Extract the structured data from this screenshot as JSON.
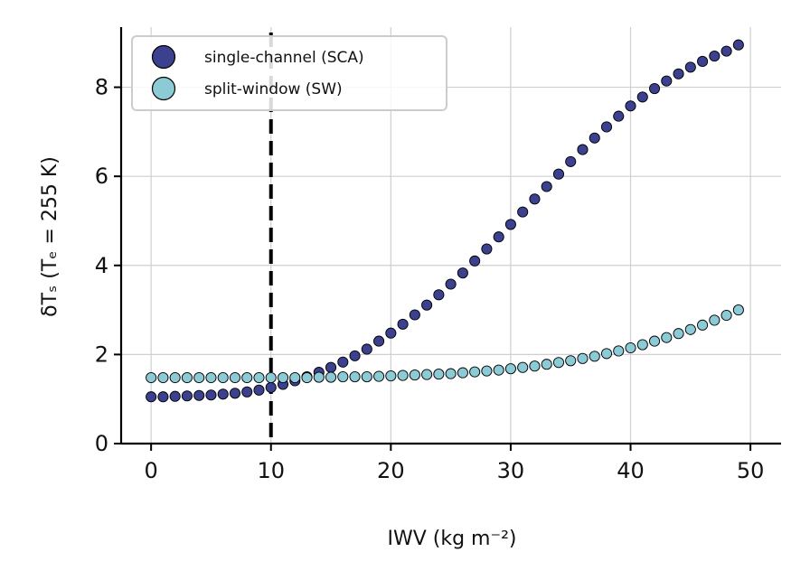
{
  "chart_data": {
    "type": "scatter",
    "title": "",
    "xlabel": "IWV (kg m⁻²)",
    "ylabel": "δTₛ (Tₑ = 255 K)",
    "xlim": [
      -2.5,
      51.5
    ],
    "ylim": [
      0,
      9.35
    ],
    "xticks": [
      0,
      10,
      20,
      30,
      40,
      50
    ],
    "yticks": [
      0,
      2,
      4,
      6,
      8
    ],
    "grid": true,
    "legend_position": "top-left",
    "vline": {
      "x": 10,
      "style": "dashed",
      "color": "#000000"
    },
    "x": [
      0,
      1,
      2,
      3,
      4,
      5,
      6,
      7,
      8,
      9,
      10,
      11,
      12,
      13,
      14,
      15,
      16,
      17,
      18,
      19,
      20,
      21,
      22,
      23,
      24,
      25,
      26,
      27,
      28,
      29,
      30,
      31,
      32,
      33,
      34,
      35,
      36,
      37,
      38,
      39,
      40,
      41,
      42,
      43,
      44,
      45,
      46,
      47,
      48,
      49
    ],
    "series": [
      {
        "name": "single-channel (SCA)",
        "color": "#3b418e",
        "values": [
          1.05,
          1.05,
          1.06,
          1.07,
          1.08,
          1.09,
          1.11,
          1.13,
          1.16,
          1.2,
          1.26,
          1.33,
          1.41,
          1.5,
          1.6,
          1.71,
          1.83,
          1.97,
          2.12,
          2.3,
          2.48,
          2.68,
          2.89,
          3.11,
          3.34,
          3.58,
          3.83,
          4.1,
          4.37,
          4.64,
          4.92,
          5.2,
          5.49,
          5.77,
          6.05,
          6.33,
          6.6,
          6.86,
          7.11,
          7.35,
          7.58,
          7.78,
          7.97,
          8.14,
          8.3,
          8.45,
          8.58,
          8.7,
          8.81,
          8.95
        ]
      },
      {
        "name": "split-window (SW)",
        "color": "#8ccad6",
        "values": [
          1.48,
          1.48,
          1.48,
          1.48,
          1.48,
          1.48,
          1.48,
          1.48,
          1.48,
          1.48,
          1.48,
          1.48,
          1.48,
          1.48,
          1.49,
          1.49,
          1.5,
          1.5,
          1.5,
          1.51,
          1.52,
          1.53,
          1.54,
          1.55,
          1.56,
          1.57,
          1.59,
          1.61,
          1.63,
          1.65,
          1.68,
          1.71,
          1.74,
          1.78,
          1.82,
          1.86,
          1.91,
          1.96,
          2.02,
          2.08,
          2.15,
          2.22,
          2.3,
          2.38,
          2.47,
          2.56,
          2.66,
          2.77,
          2.88,
          3.0
        ]
      }
    ]
  }
}
